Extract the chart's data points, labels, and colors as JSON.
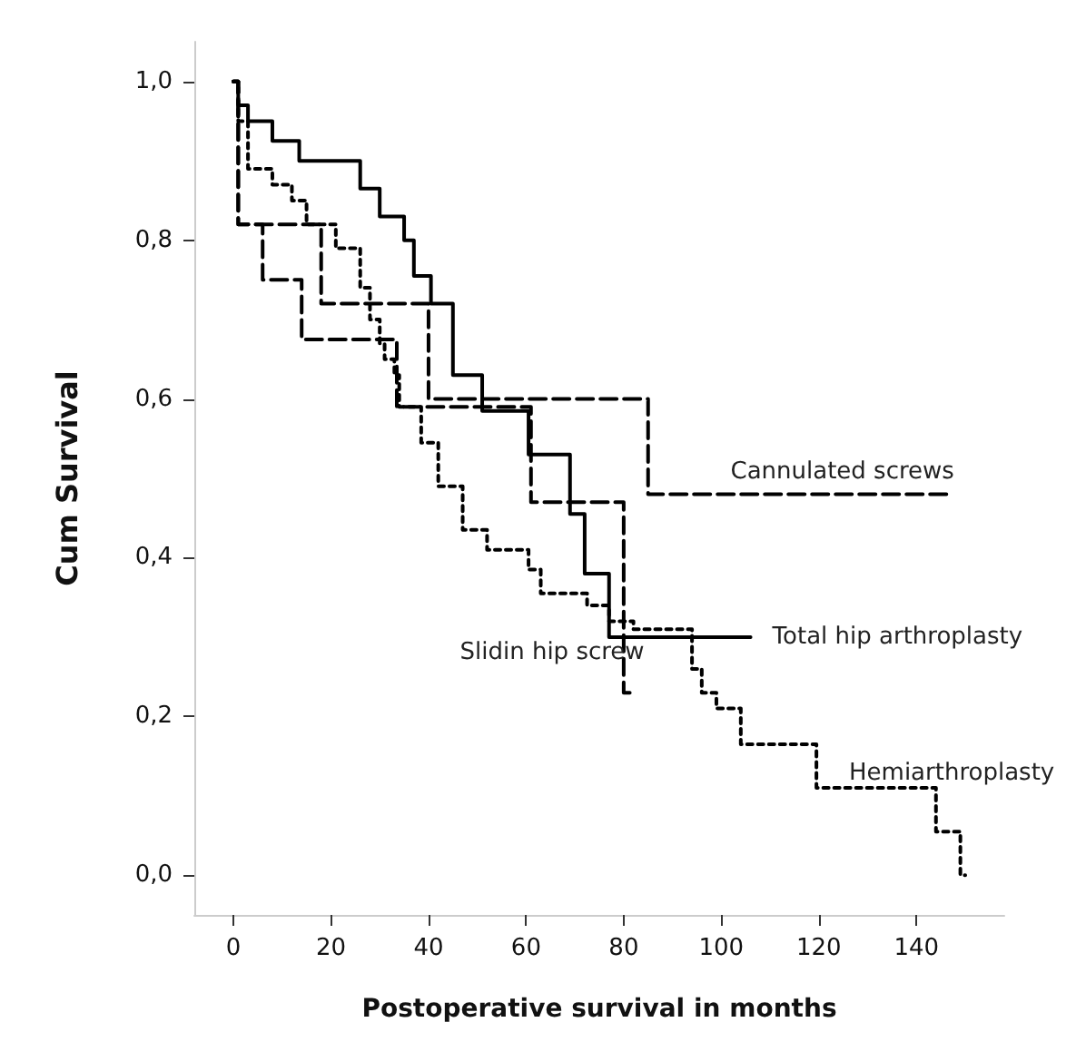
{
  "chart_data": {
    "type": "step",
    "xlabel": "Postoperative survival in months",
    "ylabel": "Cum Survival",
    "xlim": [
      -8,
      158
    ],
    "ylim": [
      -0.05,
      1.05
    ],
    "xticks": [
      0,
      20,
      40,
      60,
      80,
      100,
      120,
      140
    ],
    "yticks": [
      {
        "value": 0,
        "label": "0,0"
      },
      {
        "value": 0.2,
        "label": "0,2"
      },
      {
        "value": 0.4,
        "label": "0,4"
      },
      {
        "value": 0.6,
        "label": "0,6"
      },
      {
        "value": 0.8,
        "label": "0,8"
      },
      {
        "value": 1,
        "label": "1,0"
      }
    ],
    "grid": false,
    "legend": false,
    "marker": "none",
    "series": [
      {
        "name": "Cannulated screws",
        "color": "#000000",
        "line_style": "dashed",
        "x": [
          0,
          1,
          18,
          40,
          85,
          147
        ],
        "values": [
          1.0,
          0.82,
          0.72,
          0.6,
          0.48,
          0.48
        ]
      },
      {
        "name": "Total hip arthroplasty",
        "color": "#000000",
        "line_style": "solid",
        "x": [
          0,
          1,
          3,
          8,
          13.5,
          26,
          30,
          35,
          37,
          40.5,
          45,
          51,
          60.5,
          69,
          72,
          77,
          106
        ],
        "values": [
          1.0,
          0.97,
          0.95,
          0.925,
          0.9,
          0.865,
          0.83,
          0.8,
          0.755,
          0.72,
          0.63,
          0.585,
          0.53,
          0.455,
          0.38,
          0.3,
          0.3
        ]
      },
      {
        "name": "Slidin hip screw",
        "color": "#000000",
        "line_style": "dashed",
        "x": [
          0,
          1,
          6,
          14,
          33.5,
          61,
          80,
          82
        ],
        "values": [
          1.0,
          0.82,
          0.75,
          0.675,
          0.59,
          0.47,
          0.23,
          0.23
        ]
      },
      {
        "name": "Hemiarthroplasty",
        "color": "#000000",
        "line_style": "dotted",
        "x": [
          0,
          1,
          3,
          8,
          12,
          15,
          21,
          26,
          28,
          30,
          31,
          33,
          34,
          38.5,
          42,
          47,
          52,
          60.5,
          63,
          72.5,
          77,
          82,
          94,
          96,
          99,
          104,
          119.5,
          144,
          149,
          150
        ],
        "values": [
          1.0,
          0.95,
          0.89,
          0.87,
          0.85,
          0.82,
          0.79,
          0.74,
          0.7,
          0.67,
          0.65,
          0.63,
          0.59,
          0.545,
          0.49,
          0.435,
          0.41,
          0.385,
          0.355,
          0.34,
          0.32,
          0.31,
          0.26,
          0.23,
          0.21,
          0.165,
          0.11,
          0.055,
          0.0,
          0.0
        ]
      }
    ]
  }
}
